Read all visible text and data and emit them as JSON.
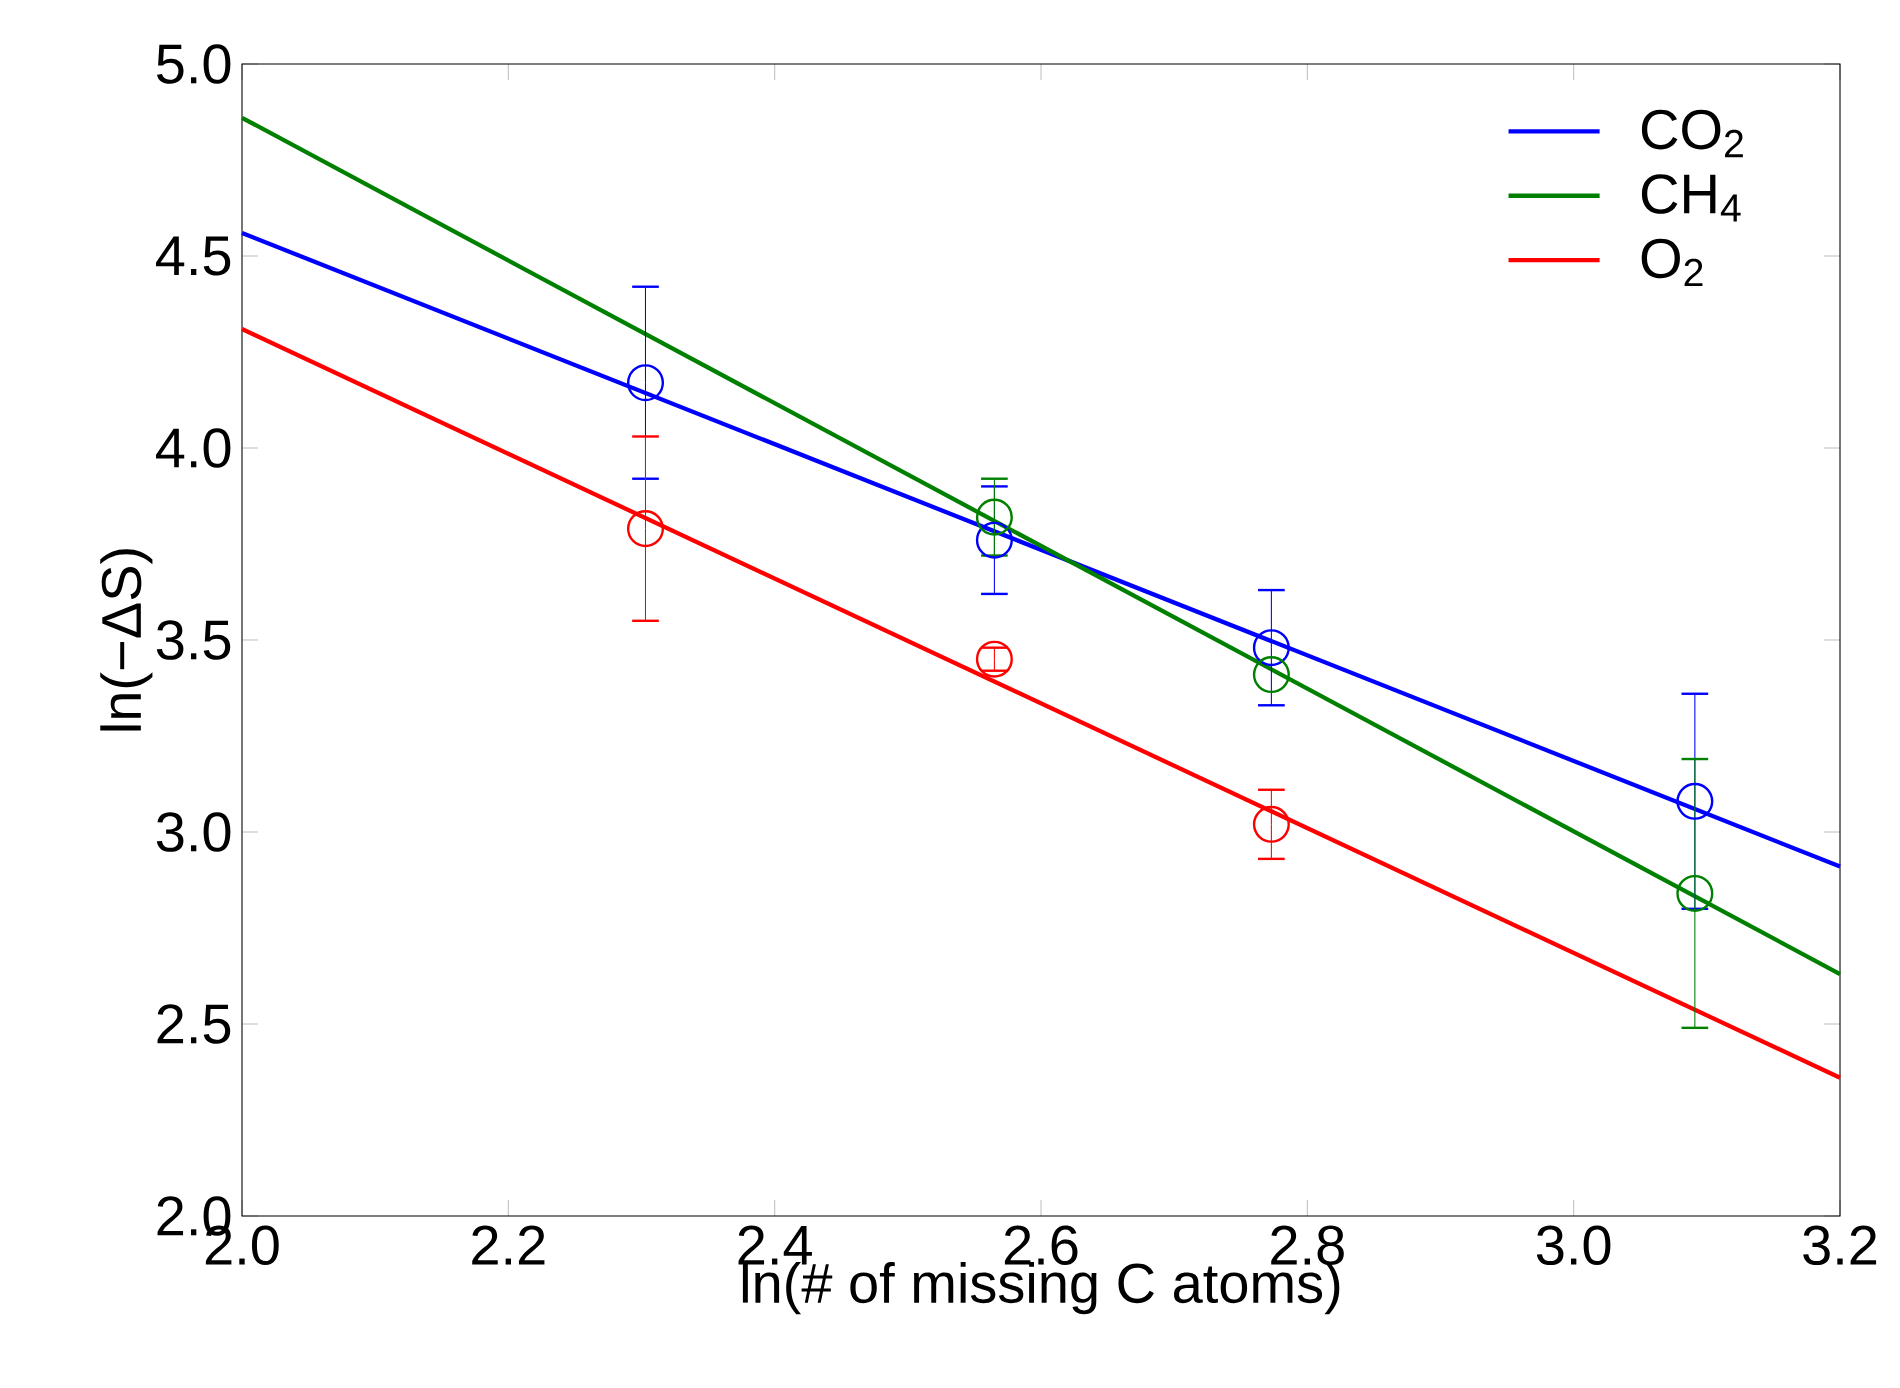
{
  "chart_data": {
    "type": "scatter",
    "xlabel": "ln(# of missing C atoms)",
    "ylabel": "ln(−ΔS)",
    "xlim": [
      2.0,
      3.2
    ],
    "ylim": [
      2.0,
      5.0
    ],
    "xticks": [
      {
        "value": 2.0,
        "label": "2.0"
      },
      {
        "value": 2.2,
        "label": "2.2"
      },
      {
        "value": 2.4,
        "label": "2.4"
      },
      {
        "value": 2.6,
        "label": "2.6"
      },
      {
        "value": 2.8,
        "label": "2.8"
      },
      {
        "value": 3.0,
        "label": "3.0"
      },
      {
        "value": 3.2,
        "label": "3.2"
      }
    ],
    "yticks": [
      {
        "value": 2.0,
        "label": "2.0"
      },
      {
        "value": 2.5,
        "label": "2.5"
      },
      {
        "value": 3.0,
        "label": "3.0"
      },
      {
        "value": 3.5,
        "label": "3.5"
      },
      {
        "value": 4.0,
        "label": "4.0"
      },
      {
        "value": 4.5,
        "label": "4.5"
      },
      {
        "value": 5.0,
        "label": "5.0"
      }
    ],
    "grid": false,
    "legend": "top right",
    "series": [
      {
        "type": "line",
        "name": "CO$_{2}$",
        "color": "#0000ff",
        "x": [
          2.0,
          3.2
        ],
        "values": [
          4.56,
          2.91
        ]
      },
      {
        "type": "line",
        "name": "CH$_{4}$",
        "color": "#008000",
        "x": [
          2.0,
          3.2
        ],
        "values": [
          4.86,
          2.63
        ]
      },
      {
        "type": "line",
        "name": "O$_{2}$",
        "color": "#ff0000",
        "x": [
          2.0,
          3.2
        ],
        "values": [
          4.31,
          2.36
        ]
      },
      {
        "marker": "circle",
        "color": "#0000ff",
        "x": [
          2.303,
          2.565,
          2.773,
          3.091
        ],
        "values": [
          4.17,
          3.76,
          3.48,
          3.08
        ],
        "errors": [
          0.25,
          0.14,
          0.15,
          0.28
        ]
      },
      {
        "marker": "circle",
        "color": "#008000",
        "x": [
          2.565,
          2.773,
          3.091
        ],
        "values": [
          3.82,
          3.41,
          2.84
        ],
        "errors": [
          0.1,
          null,
          0.35
        ]
      },
      {
        "marker": "circle",
        "color": "#ff0000",
        "x": [
          2.303,
          2.565,
          2.773
        ],
        "values": [
          3.79,
          3.45,
          3.02
        ],
        "errors": [
          0.24,
          0.03,
          0.09
        ]
      }
    ]
  }
}
